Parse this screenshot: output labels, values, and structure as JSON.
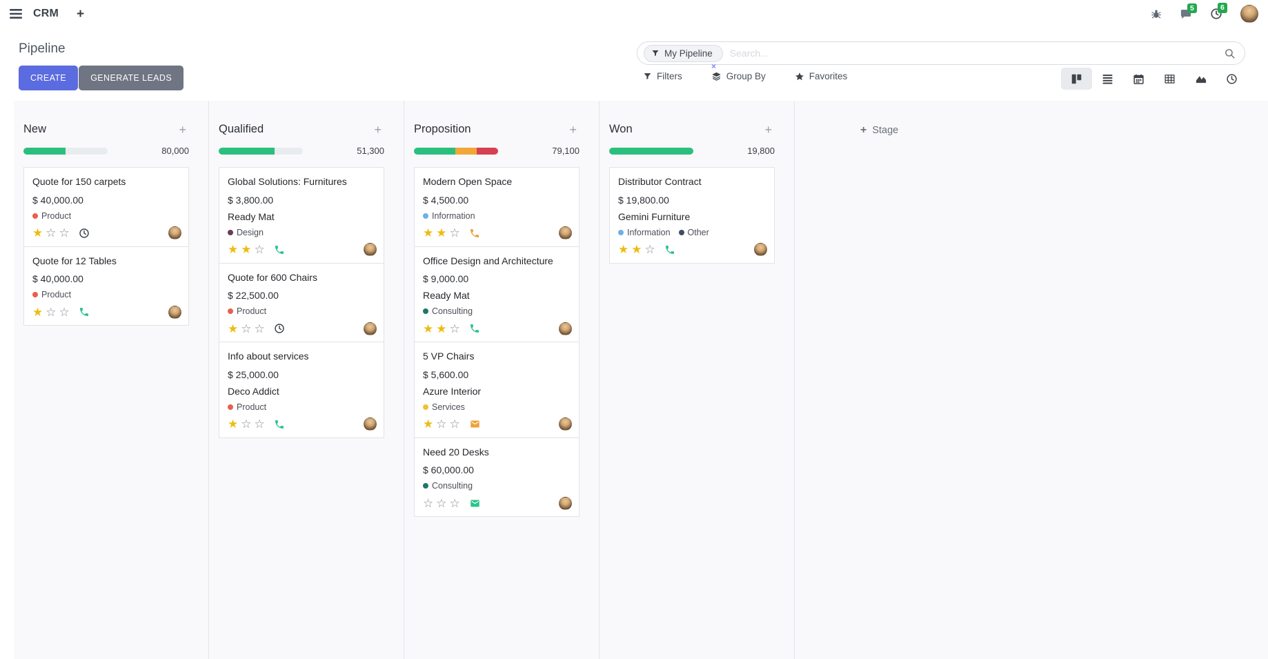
{
  "navbar": {
    "app_name": "CRM",
    "messages_badge": "5",
    "activities_badge": "6"
  },
  "control_panel": {
    "title": "Pipeline",
    "buttons": {
      "create": "CREATE",
      "generate_leads": "GENERATE LEADS"
    },
    "search": {
      "facet_label": "My Pipeline",
      "placeholder": "Search...",
      "remove_glyph": "×"
    },
    "menus": {
      "filters": "Filters",
      "group_by": "Group By",
      "favorites": "Favorites"
    }
  },
  "colors": {
    "primary_button": "#5b6be0",
    "secondary_button": "#6f7582",
    "badge_green": "#23a94e",
    "progress_green": "#2abf7e",
    "progress_orange": "#f2a63a",
    "progress_red": "#d64050",
    "star_gold": "#eebb12"
  },
  "kanban": {
    "add_stage_label": "Stage",
    "columns": [
      {
        "name": "New",
        "counter": "80,000",
        "progress": [
          {
            "color": "#2abf7e",
            "pct": 50
          }
        ],
        "cards": [
          {
            "title": "Quote for 150 carpets",
            "amount": "$ 40,000.00",
            "partner": null,
            "tags": [
              {
                "label": "Product",
                "color": "#e8604c"
              }
            ],
            "stars": 1,
            "activity": {
              "icon": "clock",
              "color": "#40454c"
            }
          },
          {
            "title": "Quote for 12 Tables",
            "amount": "$ 40,000.00",
            "partner": null,
            "tags": [
              {
                "label": "Product",
                "color": "#e8604c"
              }
            ],
            "stars": 1,
            "activity": {
              "icon": "phone",
              "color": "#2bc38c"
            }
          }
        ]
      },
      {
        "name": "Qualified",
        "counter": "51,300",
        "progress": [
          {
            "color": "#2abf7e",
            "pct": 66
          }
        ],
        "cards": [
          {
            "title": "Global Solutions: Furnitures",
            "amount": "$ 3,800.00",
            "partner": "Ready Mat",
            "tags": [
              {
                "label": "Design",
                "color": "#6d3b59"
              }
            ],
            "stars": 2,
            "activity": {
              "icon": "phone",
              "color": "#2bc38c"
            }
          },
          {
            "title": "Quote for 600 Chairs",
            "amount": "$ 22,500.00",
            "partner": null,
            "tags": [
              {
                "label": "Product",
                "color": "#e8604c"
              }
            ],
            "stars": 1,
            "activity": {
              "icon": "clock",
              "color": "#40454c"
            }
          },
          {
            "title": "Info about services",
            "amount": "$ 25,000.00",
            "partner": "Deco Addict",
            "tags": [
              {
                "label": "Product",
                "color": "#e8604c"
              }
            ],
            "stars": 1,
            "activity": {
              "icon": "phone",
              "color": "#2bc38c"
            }
          }
        ]
      },
      {
        "name": "Proposition",
        "counter": "79,100",
        "progress": [
          {
            "color": "#2abf7e",
            "pct": 49
          },
          {
            "color": "#f2a63a",
            "pct": 26
          },
          {
            "color": "#d64050",
            "pct": 25
          }
        ],
        "cards": [
          {
            "title": "Modern Open Space",
            "amount": "$ 4,500.00",
            "partner": null,
            "tags": [
              {
                "label": "Information",
                "color": "#6eb1e4"
              }
            ],
            "stars": 2,
            "activity": {
              "icon": "phone",
              "color": "#eda23c"
            }
          },
          {
            "title": "Office Design and Architecture",
            "amount": "$ 9,000.00",
            "partner": "Ready Mat",
            "tags": [
              {
                "label": "Consulting",
                "color": "#21756f"
              }
            ],
            "stars": 2,
            "activity": {
              "icon": "phone",
              "color": "#2bc38c"
            }
          },
          {
            "title": "5 VP Chairs",
            "amount": "$ 5,600.00",
            "partner": "Azure Interior",
            "tags": [
              {
                "label": "Services",
                "color": "#f0c137"
              }
            ],
            "stars": 1,
            "activity": {
              "icon": "envelope",
              "color": "#eda23c"
            }
          },
          {
            "title": "Need 20 Desks",
            "amount": "$ 60,000.00",
            "partner": null,
            "tags": [
              {
                "label": "Consulting",
                "color": "#21756f"
              }
            ],
            "stars": 0,
            "activity": {
              "icon": "envelope",
              "color": "#2bc38c"
            }
          }
        ]
      },
      {
        "name": "Won",
        "counter": "19,800",
        "progress": [
          {
            "color": "#2abf7e",
            "pct": 100
          }
        ],
        "cards": [
          {
            "title": "Distributor Contract",
            "amount": "$ 19,800.00",
            "partner": "Gemini Furniture",
            "tags": [
              {
                "label": "Information",
                "color": "#6eb1e4"
              },
              {
                "label": "Other",
                "color": "#3e4e63"
              }
            ],
            "stars": 2,
            "activity": {
              "icon": "phone",
              "color": "#2bc38c"
            }
          }
        ]
      }
    ]
  }
}
